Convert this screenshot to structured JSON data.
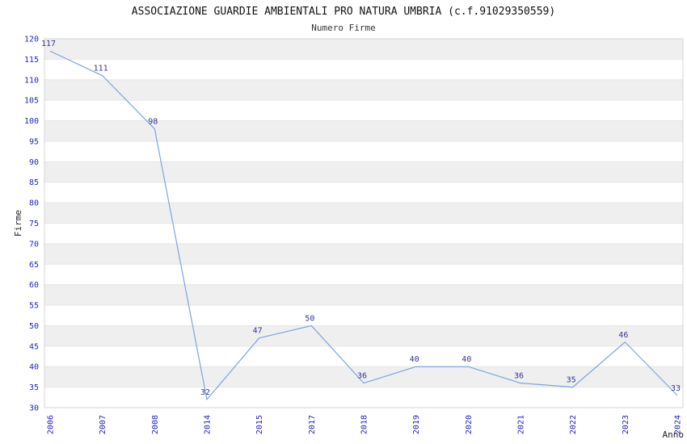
{
  "header": {
    "title": "ASSOCIAZIONE GUARDIE AMBIENTALI PRO NATURA UMBRIA (c.f.91029350559)",
    "subtitle": "Numero Firme"
  },
  "chart_data": {
    "type": "line",
    "title": "ASSOCIAZIONE GUARDIE AMBIENTALI PRO NATURA UMBRIA (c.f.91029350559)",
    "subtitle": "Numero Firme",
    "categories": [
      "2006",
      "2007",
      "2008",
      "2014",
      "2015",
      "2017",
      "2018",
      "2019",
      "2020",
      "2021",
      "2022",
      "2023",
      "2024"
    ],
    "values": [
      117,
      111,
      98,
      32,
      47,
      50,
      36,
      40,
      40,
      36,
      35,
      46,
      33
    ],
    "xlabel": "Anno",
    "ylabel": "Firme",
    "ylim": [
      30,
      120
    ],
    "ytick_step": 5,
    "yticks": [
      30,
      35,
      40,
      45,
      50,
      55,
      60,
      65,
      70,
      75,
      80,
      85,
      90,
      95,
      100,
      105,
      110,
      115,
      120
    ],
    "grid": true,
    "legend": false,
    "colors": {
      "line": "#7aa6dc",
      "point_label": "#333399",
      "tick_label": "#2424c0",
      "band": "#efefef",
      "gridline": "#e6e6e6",
      "plot_border": "#d6d6d6",
      "axis_text": "#222222"
    }
  }
}
